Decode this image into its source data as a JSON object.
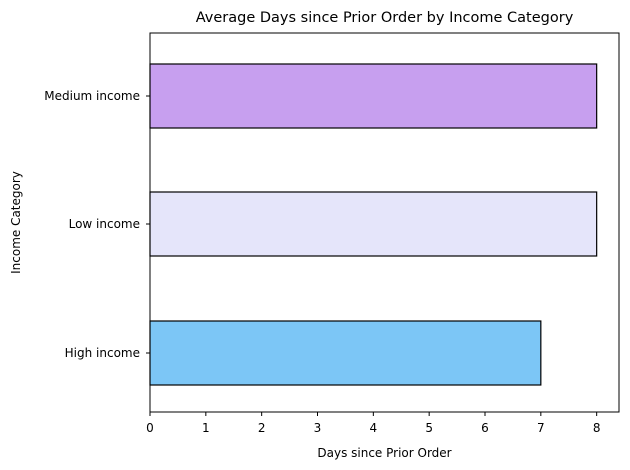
{
  "chart_data": {
    "type": "bar",
    "orientation": "horizontal",
    "title": "Average Days since Prior Order by Income Category",
    "xlabel": "Days since Prior Order",
    "ylabel": "Income Category",
    "categories": [
      "High income",
      "Low income",
      "Medium income"
    ],
    "values": [
      7,
      8,
      8
    ],
    "colors": [
      "#7cc6f6",
      "#e5e5fa",
      "#c79fef"
    ],
    "edge_color": "#000000",
    "xlim": [
      0,
      8.4
    ],
    "xticks": [
      0,
      1,
      2,
      3,
      4,
      5,
      6,
      7,
      8
    ],
    "grid": false,
    "legend": "none"
  }
}
